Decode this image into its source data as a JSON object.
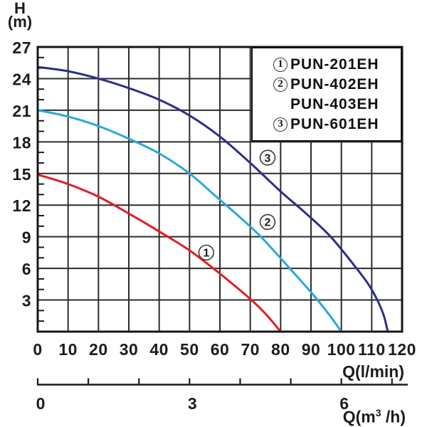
{
  "labels": {
    "y_line1": "H",
    "y_line2": "(m)",
    "x1": "Q(l/min)",
    "x2_prefix": "Q(m",
    "x2_sup": "3",
    "x2_suffix": " /h)"
  },
  "chart_data": {
    "type": "line",
    "title": "",
    "xlabel": "Q(l/min)",
    "x2label": "Q(m3/h)",
    "ylabel": "H (m)",
    "xlim": [
      0,
      120
    ],
    "ylim": [
      0,
      27
    ],
    "grid": true,
    "x_ticks": [
      0,
      10,
      20,
      30,
      40,
      50,
      60,
      70,
      80,
      90,
      100,
      110,
      120
    ],
    "y_ticks": [
      3,
      6,
      9,
      12,
      15,
      18,
      21,
      24,
      27
    ],
    "y_minor_step": 1,
    "x2_ticks": [
      0,
      1,
      2,
      3,
      4,
      5,
      6,
      7
    ],
    "x2_labeled_ticks": [
      0,
      3,
      6
    ],
    "x2_unit_in_lmin": 16.6667,
    "series": [
      {
        "name": "PUN-201EH",
        "marker": "1",
        "color": "#e81b23",
        "points": [
          [
            0,
            14.9
          ],
          [
            10,
            14.0
          ],
          [
            20,
            12.8
          ],
          [
            30,
            11.2
          ],
          [
            40,
            9.5
          ],
          [
            50,
            7.7
          ],
          [
            60,
            5.5
          ],
          [
            70,
            3.1
          ],
          [
            75,
            1.7
          ],
          [
            80,
            0
          ]
        ]
      },
      {
        "name": "PUN-402EH / PUN-403EH",
        "marker": "2",
        "color": "#2aa7e0",
        "points": [
          [
            0,
            21
          ],
          [
            10,
            20.4
          ],
          [
            20,
            19.5
          ],
          [
            30,
            18.3
          ],
          [
            40,
            16.9
          ],
          [
            50,
            15
          ],
          [
            58,
            13.0
          ],
          [
            66,
            11.0
          ],
          [
            73.5,
            9.0
          ],
          [
            83,
            6.0
          ],
          [
            91,
            3.4
          ],
          [
            96,
            1.6
          ],
          [
            100,
            0
          ]
        ]
      },
      {
        "name": "PUN-601EH",
        "marker": "3",
        "color": "#2c2e90",
        "points": [
          [
            0,
            25.1
          ],
          [
            10,
            24.7
          ],
          [
            20,
            24.0
          ],
          [
            30,
            23.1
          ],
          [
            40,
            22.0
          ],
          [
            50,
            20.5
          ],
          [
            60,
            18.5
          ],
          [
            70,
            16.0
          ],
          [
            80,
            13.3
          ],
          [
            88,
            11.3
          ],
          [
            96.5,
            9.0
          ],
          [
            105,
            6.0
          ],
          [
            109,
            4.45
          ],
          [
            112,
            2.9
          ],
          [
            114,
            1.5
          ],
          [
            115.3,
            0
          ]
        ]
      }
    ],
    "curve_labels": [
      {
        "text": "1",
        "x": 55.5,
        "y": 7.5
      },
      {
        "text": "2",
        "x": 75.7,
        "y": 10.4
      },
      {
        "text": "3",
        "x": 75.7,
        "y": 16.5
      }
    ],
    "legend": {
      "position": "top-right",
      "rows": [
        {
          "marker": "1",
          "label": "PUN-201EH"
        },
        {
          "marker": "2",
          "label": "PUN-402EH"
        },
        {
          "marker": "",
          "label": "PUN-403EH"
        },
        {
          "marker": "3",
          "label": "PUN-601EH"
        }
      ]
    }
  }
}
